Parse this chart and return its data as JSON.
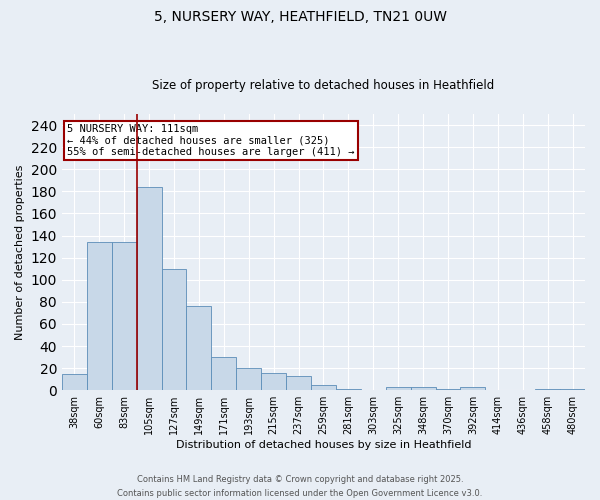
{
  "title_line1": "5, NURSERY WAY, HEATHFIELD, TN21 0UW",
  "title_line2": "Size of property relative to detached houses in Heathfield",
  "xlabel": "Distribution of detached houses by size in Heathfield",
  "ylabel": "Number of detached properties",
  "categories": [
    "38sqm",
    "60sqm",
    "83sqm",
    "105sqm",
    "127sqm",
    "149sqm",
    "171sqm",
    "193sqm",
    "215sqm",
    "237sqm",
    "259sqm",
    "281sqm",
    "303sqm",
    "325sqm",
    "348sqm",
    "370sqm",
    "392sqm",
    "414sqm",
    "436sqm",
    "458sqm",
    "480sqm"
  ],
  "values": [
    15,
    134,
    134,
    184,
    110,
    76,
    30,
    20,
    16,
    13,
    5,
    1,
    0,
    3,
    3,
    1,
    3,
    0,
    0,
    1,
    1
  ],
  "bar_color": "#c8d8e8",
  "bar_edge_color": "#5b8db8",
  "background_color": "#e8eef5",
  "grid_color": "#ffffff",
  "vline_x": 3.0,
  "vline_color": "#990000",
  "annotation_text": "5 NURSERY WAY: 111sqm\n← 44% of detached houses are smaller (325)\n55% of semi-detached houses are larger (411) →",
  "annotation_box_color": "#ffffff",
  "annotation_box_edge_color": "#990000",
  "ylim": [
    0,
    250
  ],
  "yticks": [
    0,
    20,
    40,
    60,
    80,
    100,
    120,
    140,
    160,
    180,
    200,
    220,
    240
  ],
  "footer_line1": "Contains HM Land Registry data © Crown copyright and database right 2025.",
  "footer_line2": "Contains public sector information licensed under the Open Government Licence v3.0."
}
